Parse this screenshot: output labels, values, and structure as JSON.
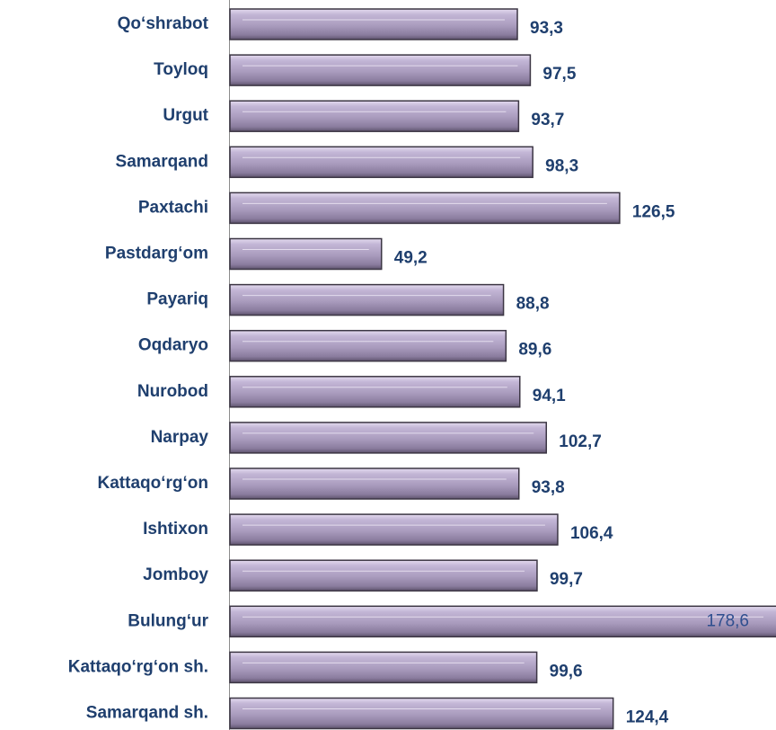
{
  "chart_data": {
    "type": "bar",
    "orientation": "horizontal",
    "categories": [
      "Qo‘shrabot",
      "Toyloq",
      "Urgut",
      "Samarqand",
      "Paxtachi",
      "Pastdarg‘om",
      "Payariq",
      "Oqdaryo",
      "Nurobod",
      "Narpay",
      "Kattaqo‘rg‘on",
      "Ishtixon",
      "Jomboy",
      "Bulung‘ur",
      "Kattaqo‘rg‘on sh.",
      "Samarqand sh."
    ],
    "values": [
      93.3,
      97.5,
      93.7,
      98.3,
      126.5,
      49.2,
      88.8,
      89.6,
      94.1,
      102.7,
      93.8,
      106.4,
      99.7,
      178.6,
      99.6,
      124.4
    ],
    "value_labels": [
      "93,3",
      "97,5",
      "93,7",
      "98,3",
      "126,5",
      "49,2",
      "88,8",
      "89,6",
      "94,1",
      "102,7",
      "93,8",
      "106,4",
      "99,7",
      "178,6",
      "99,6",
      "124,4"
    ],
    "color": "#a99bbd"
  }
}
